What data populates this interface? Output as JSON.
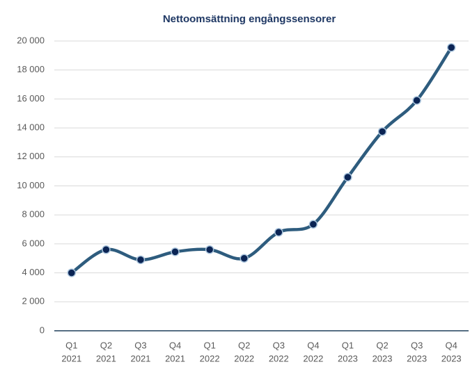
{
  "chart_data": {
    "type": "line",
    "title": "Nettoomsättning engångssensorer",
    "categories": [
      [
        "Q1",
        "2021"
      ],
      [
        "Q2",
        "2021"
      ],
      [
        "Q3",
        "2021"
      ],
      [
        "Q4",
        "2021"
      ],
      [
        "Q1",
        "2022"
      ],
      [
        "Q2",
        "2022"
      ],
      [
        "Q3",
        "2022"
      ],
      [
        "Q4",
        "2022"
      ],
      [
        "Q1",
        "2023"
      ],
      [
        "Q2",
        "2023"
      ],
      [
        "Q3",
        "2023"
      ],
      [
        "Q4",
        "2023"
      ]
    ],
    "series": [
      {
        "color": "#2e5c7e",
        "values": [
          4000,
          5600,
          4900,
          5450,
          5600,
          5000,
          6800,
          7350,
          10600,
          13750,
          15900,
          19550
        ]
      }
    ],
    "ylim": [
      0,
      20000
    ],
    "yticks": [
      0,
      {
        "value": 2000,
        "label": "2 000"
      },
      {
        "value": 4000,
        "label": "4 000"
      },
      {
        "value": 6000,
        "label": "6 000"
      },
      {
        "value": 8000,
        "label": "8 000"
      },
      {
        "value": 10000,
        "label": "10 000"
      },
      {
        "value": 12000,
        "label": "12 000"
      },
      {
        "value": 14000,
        "label": "14 000"
      },
      {
        "value": 16000,
        "label": "16 000"
      },
      {
        "value": 18000,
        "label": "18 000"
      },
      {
        "value": 20000,
        "label": "20 000"
      }
    ],
    "grid": true,
    "smooth": true
  }
}
